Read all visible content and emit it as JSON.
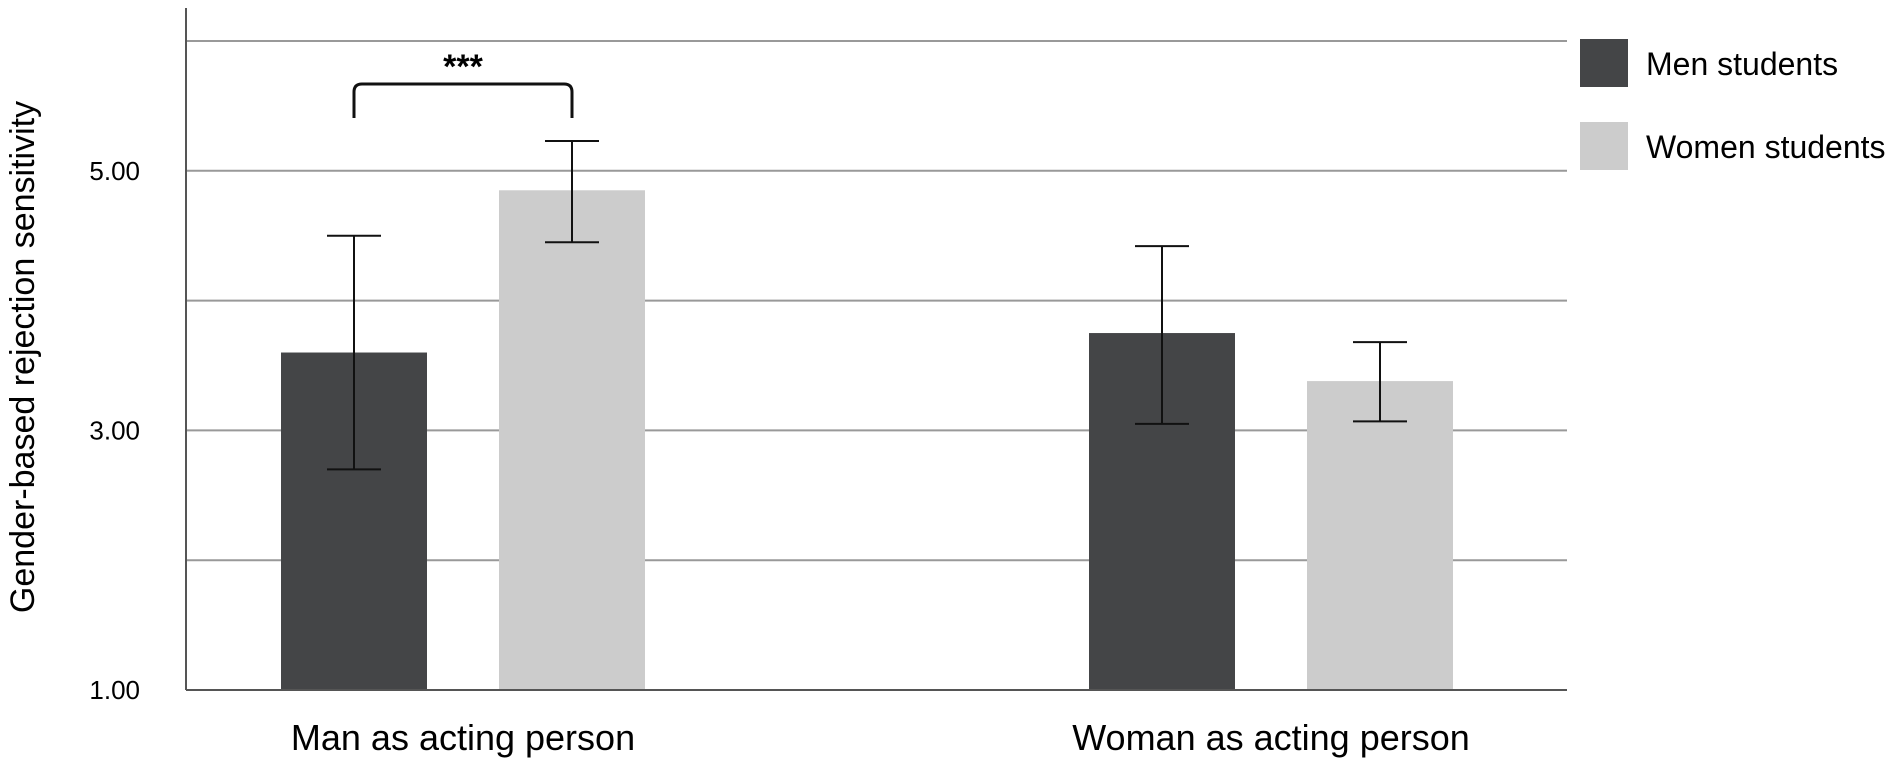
{
  "chart_data": {
    "type": "bar",
    "title": "",
    "xlabel": "",
    "ylabel": "Gender-based rejection sensitivity",
    "categories": [
      "Man as acting person",
      "Woman as acting person"
    ],
    "series": [
      {
        "name": "Men students",
        "values": [
          3.6,
          3.75
        ],
        "error_low": [
          2.7,
          3.05
        ],
        "error_high": [
          4.5,
          4.42
        ],
        "color": "#444547"
      },
      {
        "name": "Women students",
        "values": [
          4.85,
          3.38
        ],
        "error_low": [
          4.45,
          3.07
        ],
        "error_high": [
          5.23,
          3.68
        ],
        "color": "#cccccc"
      }
    ],
    "ylim": [
      1.0,
      6.0
    ],
    "gridlines": [
      2,
      3,
      4,
      5,
      6
    ],
    "yticks": [
      {
        "value": 1,
        "label": "1.00"
      },
      {
        "value": 3,
        "label": "3.00"
      },
      {
        "value": 5,
        "label": "5.00"
      }
    ],
    "grid": true,
    "legend_position": "top-right",
    "annotations": [
      {
        "text": "***",
        "category": "Man as acting person",
        "between": [
          "Men students",
          "Women students"
        ]
      }
    ]
  }
}
